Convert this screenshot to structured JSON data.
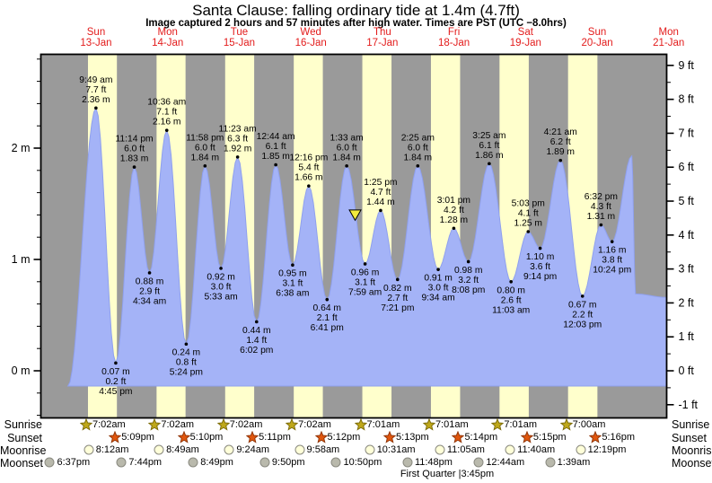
{
  "title": "Santa Clause: falling  ordinary tide at 1.4m (4.7ft)",
  "subtitle": "Image captured 2 hours and 57 minutes after high water. Times are PST (UTC −8.0hrs)",
  "colors": {
    "night_band": "#9a9a9a",
    "day_band": "#ffffcc",
    "tide_fill": "#a4b3f7",
    "tide_edge": "#8fa0ee",
    "day_label_red": "#e31b1b",
    "sunrise_star": "#bfa81a",
    "sunrise_star_edge": "#7a6a08",
    "sunset_star": "#e0560e",
    "sunset_star_edge": "#8f3406",
    "moonrise_circle": "#ffffd9",
    "moonset_circle": "#b9b9ac",
    "moon_circle_edge": "#8a8a80",
    "marker_yellow": "#f2ea3c",
    "axis_black": "#000000"
  },
  "chart_data": {
    "type": "area",
    "title": "Santa Clause: falling ordinary tide at 1.4m (4.7ft)",
    "xlabel": "days (13-Jan to 21-Jan), alternating night/day bands",
    "ylabel_left": "meters",
    "ylabel_right": "feet",
    "x_axis_days": [
      {
        "weekday": "Sun",
        "date": "13-Jan"
      },
      {
        "weekday": "Mon",
        "date": "14-Jan"
      },
      {
        "weekday": "Tue",
        "date": "15-Jan"
      },
      {
        "weekday": "Wed",
        "date": "16-Jan"
      },
      {
        "weekday": "Thu",
        "date": "17-Jan"
      },
      {
        "weekday": "Fri",
        "date": "18-Jan"
      },
      {
        "weekday": "Sat",
        "date": "19-Jan"
      },
      {
        "weekday": "Sun",
        "date": "20-Jan"
      },
      {
        "weekday": "Mon",
        "date": "21-Jan"
      }
    ],
    "y_axis_left": {
      "unit": "m",
      "tick_labels": [
        "0 m",
        "1 m",
        "2 m"
      ],
      "minor_step_m": 0.2,
      "range_m": [
        -0.45,
        2.85
      ]
    },
    "y_axis_right": {
      "unit": "ft",
      "tick_labels": [
        "-1 ft",
        "0 ft",
        "1 ft",
        "2 ft",
        "3 ft",
        "4 ft",
        "5 ft",
        "6 ft",
        "7 ft",
        "8 ft",
        "9 ft"
      ],
      "minor_step_ft": 0.5,
      "range_ft": [
        -1.4,
        9.35
      ]
    },
    "tides": [
      {
        "day": 0,
        "hour": 0.0,
        "m": -0.14,
        "type": "start",
        "annotated": false
      },
      {
        "day": 0,
        "hour": 9.82,
        "time": "9:49 am",
        "m": 2.36,
        "ft": 7.7,
        "type": "high",
        "annotated": true
      },
      {
        "day": 0,
        "hour": 16.75,
        "time": "4:45 pm",
        "m": 0.07,
        "ft": 0.2,
        "type": "low",
        "annotated": true
      },
      {
        "day": 0,
        "hour": 23.23,
        "time": "11:14 pm",
        "m": 1.83,
        "ft": 6.0,
        "type": "high",
        "annotated": true
      },
      {
        "day": 1,
        "hour": 4.57,
        "time": "4:34 am",
        "m": 0.88,
        "ft": 2.9,
        "type": "low",
        "annotated": true
      },
      {
        "day": 1,
        "hour": 10.6,
        "time": "10:36 am",
        "m": 2.16,
        "ft": 7.1,
        "type": "high",
        "annotated": true
      },
      {
        "day": 1,
        "hour": 17.4,
        "time": "5:24 pm",
        "m": 0.24,
        "ft": 0.8,
        "type": "low",
        "annotated": true
      },
      {
        "day": 1,
        "hour": 23.97,
        "time": "11:58 pm",
        "m": 1.84,
        "ft": 6.0,
        "type": "high",
        "annotated": true
      },
      {
        "day": 2,
        "hour": 5.55,
        "time": "5:33 am",
        "m": 0.92,
        "ft": 3.0,
        "type": "low",
        "annotated": true
      },
      {
        "day": 2,
        "hour": 11.38,
        "time": "11:23 am",
        "m": 1.92,
        "ft": 6.3,
        "type": "high",
        "annotated": true
      },
      {
        "day": 2,
        "hour": 18.03,
        "time": "6:02 pm",
        "m": 0.44,
        "ft": 1.4,
        "type": "low",
        "annotated": true
      },
      {
        "day": 3,
        "hour": 0.73,
        "time": "12:44 am",
        "m": 1.85,
        "ft": 6.1,
        "type": "high",
        "annotated": true
      },
      {
        "day": 3,
        "hour": 6.63,
        "time": "6:38 am",
        "m": 0.95,
        "ft": 3.1,
        "type": "low",
        "annotated": true
      },
      {
        "day": 3,
        "hour": 12.27,
        "time": "12:16 pm",
        "m": 1.66,
        "ft": 5.4,
        "type": "high",
        "annotated": true
      },
      {
        "day": 3,
        "hour": 18.68,
        "time": "6:41 pm",
        "m": 0.64,
        "ft": 2.1,
        "type": "low",
        "annotated": true
      },
      {
        "day": 4,
        "hour": 1.55,
        "time": "1:33 am",
        "m": 1.84,
        "ft": 6.0,
        "type": "high",
        "annotated": true
      },
      {
        "day": 4,
        "hour": 7.98,
        "time": "7:59 am",
        "m": 0.96,
        "ft": 3.1,
        "type": "low",
        "annotated": true
      },
      {
        "day": 4,
        "hour": 13.42,
        "time": "1:25 pm",
        "m": 1.44,
        "ft": 4.7,
        "type": "high",
        "annotated": true
      },
      {
        "day": 4,
        "hour": 19.35,
        "time": "7:21 pm",
        "m": 0.82,
        "ft": 2.7,
        "type": "low",
        "annotated": true
      },
      {
        "day": 5,
        "hour": 2.42,
        "time": "2:25 am",
        "m": 1.84,
        "ft": 6.0,
        "type": "high",
        "annotated": true
      },
      {
        "day": 5,
        "hour": 9.57,
        "time": "9:34 am",
        "m": 0.91,
        "ft": 3.0,
        "type": "low",
        "annotated": true
      },
      {
        "day": 5,
        "hour": 15.02,
        "time": "3:01 pm",
        "m": 1.28,
        "ft": 4.2,
        "type": "high",
        "annotated": true
      },
      {
        "day": 5,
        "hour": 20.13,
        "time": "8:08 pm",
        "m": 0.98,
        "ft": 3.2,
        "type": "low",
        "annotated": true
      },
      {
        "day": 6,
        "hour": 3.42,
        "time": "3:25 am",
        "m": 1.86,
        "ft": 6.1,
        "type": "high",
        "annotated": true
      },
      {
        "day": 6,
        "hour": 11.05,
        "time": "11:03 am",
        "m": 0.8,
        "ft": 2.6,
        "type": "low",
        "annotated": true
      },
      {
        "day": 6,
        "hour": 17.05,
        "time": "5:03 pm",
        "m": 1.25,
        "ft": 4.1,
        "type": "high",
        "annotated": true
      },
      {
        "day": 6,
        "hour": 21.23,
        "time": "9:14 pm",
        "m": 1.1,
        "ft": 3.6,
        "type": "low",
        "annotated": true
      },
      {
        "day": 7,
        "hour": 4.35,
        "time": "4:21 am",
        "m": 1.89,
        "ft": 6.2,
        "type": "high",
        "annotated": true
      },
      {
        "day": 7,
        "hour": 12.05,
        "time": "12:03 pm",
        "m": 0.67,
        "ft": 2.2,
        "type": "low",
        "annotated": true
      },
      {
        "day": 7,
        "hour": 18.53,
        "time": "6:32 pm",
        "m": 1.31,
        "ft": 4.3,
        "type": "high",
        "annotated": true
      },
      {
        "day": 7,
        "hour": 22.4,
        "time": "10:24 pm",
        "m": 1.16,
        "ft": 3.8,
        "type": "low",
        "annotated": true
      },
      {
        "day": 8,
        "hour": 5.3,
        "m": 1.93,
        "type": "high",
        "annotated": false
      },
      {
        "day": 8,
        "hour": 6.6,
        "m": 0.69,
        "type": "low",
        "annotated": false
      },
      {
        "day": 8,
        "hour": 17.35,
        "m": 0.66,
        "type": "end",
        "annotated": false
      }
    ],
    "current_marker": {
      "day": 4,
      "hour": 4.5,
      "height_m": 1.4,
      "symbol": "yellow-triangle-down"
    },
    "fill_baseline_m": -0.14
  },
  "astro": {
    "rows": [
      {
        "label": "Sunrise",
        "icon": "sunrise-star",
        "entries": [
          {
            "day": 0,
            "hour": 7.03,
            "time": "7:02am"
          },
          {
            "day": 1,
            "hour": 7.03,
            "time": "7:02am"
          },
          {
            "day": 2,
            "hour": 7.03,
            "time": "7:02am"
          },
          {
            "day": 3,
            "hour": 7.03,
            "time": "7:02am"
          },
          {
            "day": 4,
            "hour": 7.02,
            "time": "7:01am"
          },
          {
            "day": 5,
            "hour": 7.02,
            "time": "7:01am"
          },
          {
            "day": 6,
            "hour": 7.02,
            "time": "7:01am"
          },
          {
            "day": 7,
            "hour": 7.0,
            "time": "7:00am"
          }
        ]
      },
      {
        "label": "Sunset",
        "icon": "sunset-star",
        "entries": [
          {
            "day": 0,
            "hour": 17.15,
            "time": "5:09pm"
          },
          {
            "day": 1,
            "hour": 17.17,
            "time": "5:10pm"
          },
          {
            "day": 2,
            "hour": 17.18,
            "time": "5:11pm"
          },
          {
            "day": 3,
            "hour": 17.2,
            "time": "5:12pm"
          },
          {
            "day": 4,
            "hour": 17.22,
            "time": "5:13pm"
          },
          {
            "day": 5,
            "hour": 17.23,
            "time": "5:14pm"
          },
          {
            "day": 6,
            "hour": 17.25,
            "time": "5:15pm"
          },
          {
            "day": 7,
            "hour": 17.27,
            "time": "5:16pm"
          }
        ]
      },
      {
        "label": "Moonrise",
        "icon": "moonrise-circle",
        "entries": [
          {
            "day": 0,
            "hour": 8.2,
            "time": "8:12am"
          },
          {
            "day": 1,
            "hour": 8.82,
            "time": "8:49am"
          },
          {
            "day": 2,
            "hour": 9.4,
            "time": "9:24am"
          },
          {
            "day": 3,
            "hour": 9.97,
            "time": "9:58am"
          },
          {
            "day": 4,
            "hour": 10.52,
            "time": "10:31am"
          },
          {
            "day": 5,
            "hour": 11.08,
            "time": "11:05am"
          },
          {
            "day": 6,
            "hour": 11.67,
            "time": "11:40am"
          },
          {
            "day": 7,
            "hour": 12.32,
            "time": "12:19pm"
          }
        ]
      },
      {
        "label": "Moonset",
        "icon": "moonset-circle",
        "entries": [
          {
            "day": -1,
            "hour": 18.62,
            "time": "6:37pm"
          },
          {
            "day": 0,
            "hour": 19.73,
            "time": "7:44pm"
          },
          {
            "day": 1,
            "hour": 20.82,
            "time": "8:49pm"
          },
          {
            "day": 2,
            "hour": 21.83,
            "time": "9:50pm"
          },
          {
            "day": 3,
            "hour": 22.83,
            "time": "10:50pm"
          },
          {
            "day": 4,
            "hour": 23.8,
            "time": "11:48pm"
          },
          {
            "day": 6,
            "hour": 0.73,
            "time": "12:44am"
          },
          {
            "day": 7,
            "hour": 1.65,
            "time": "1:39am"
          }
        ]
      }
    ],
    "note": "First Quarter |3:45pm"
  }
}
